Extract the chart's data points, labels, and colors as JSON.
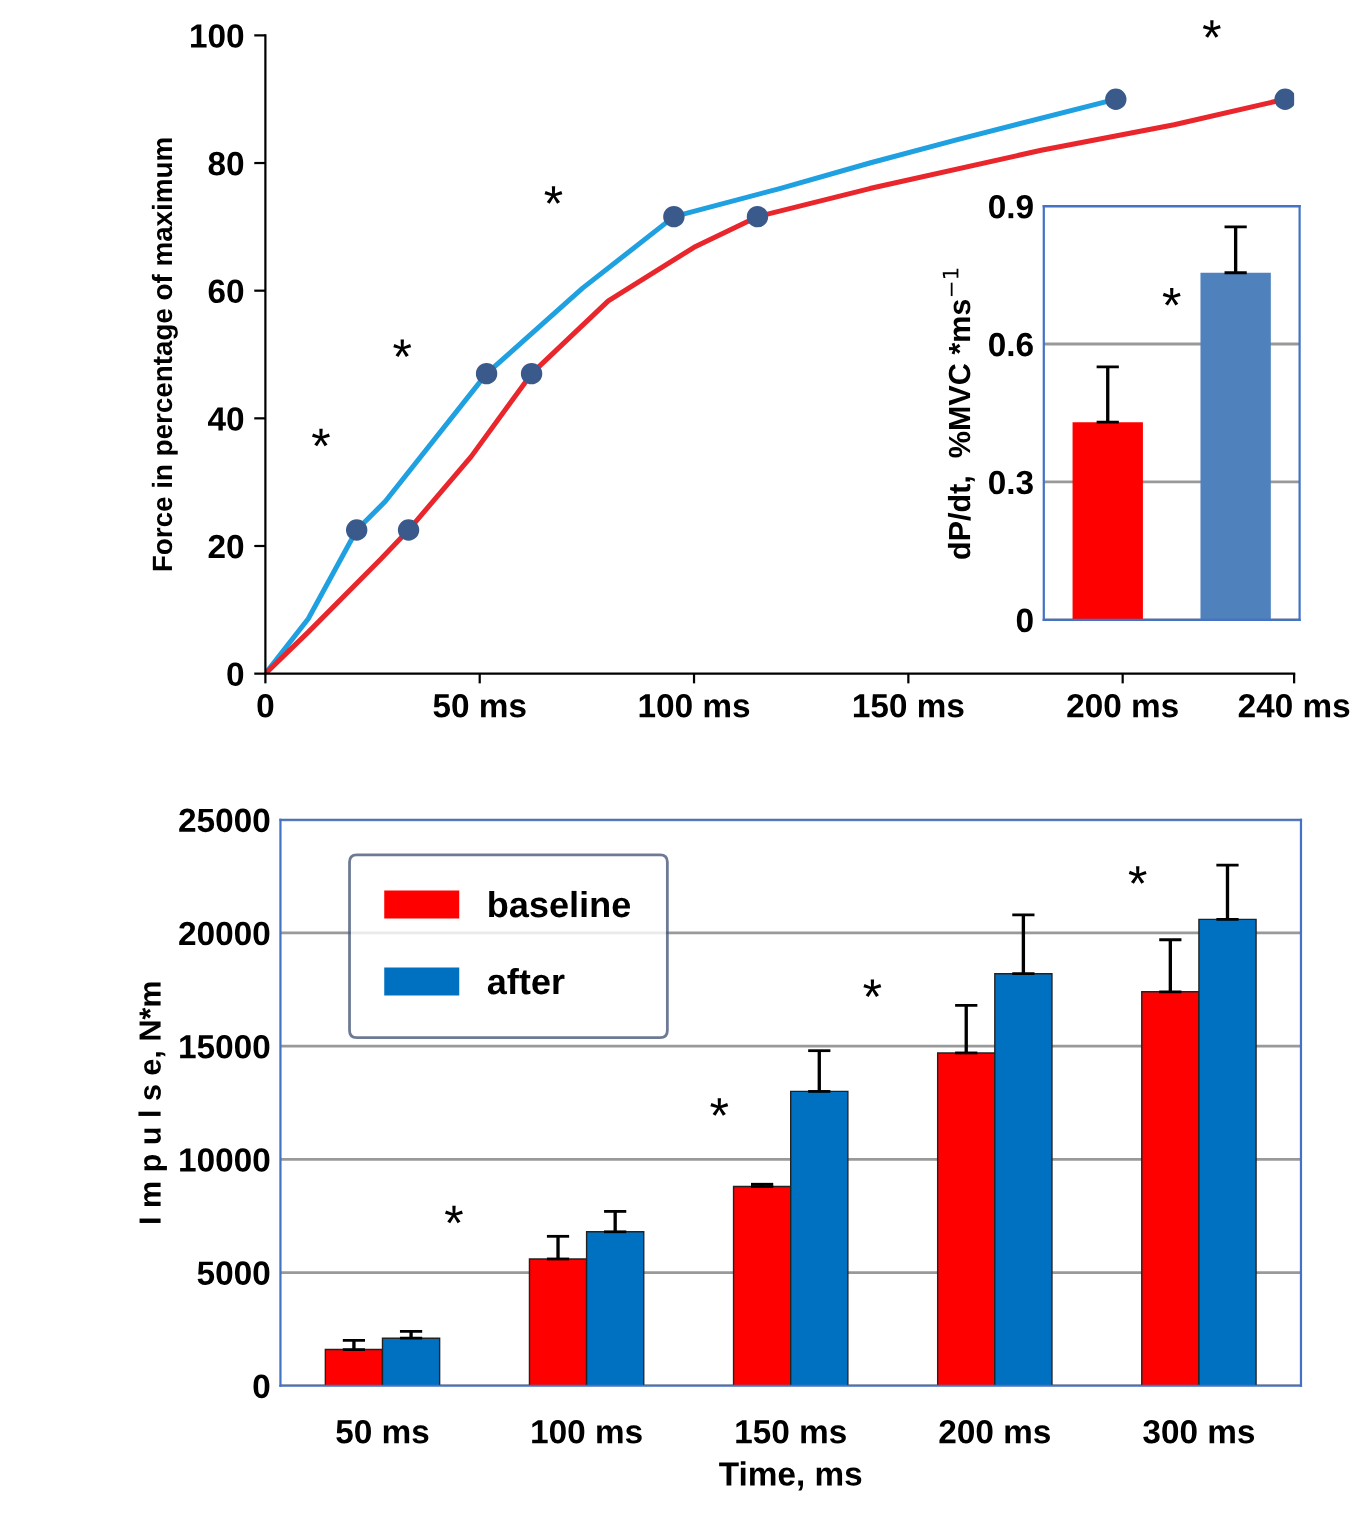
{
  "chart_data": [
    {
      "type": "line",
      "ylabel": "Force in percentage of maximum",
      "xlim": [
        0,
        240
      ],
      "ylim": [
        0,
        100
      ],
      "xticks": [
        0,
        {
          "value": 50,
          "label": "50 ms"
        },
        {
          "value": 100,
          "label": "100 ms"
        },
        {
          "value": 150,
          "label": "150 ms"
        },
        {
          "value": 200,
          "label": "200 ms"
        },
        {
          "value": 240,
          "label": "240 ms"
        }
      ],
      "yticks": [
        0,
        20,
        40,
        60,
        80,
        100
      ],
      "grid": false,
      "legend": false,
      "series": [
        {
          "color": "#1fa0e0",
          "x": [
            0,
            10,
            21.3,
            28,
            51.6,
            74,
            95.3,
            120,
            141,
            161,
            198.4
          ],
          "values": [
            0,
            8.6,
            22.5,
            27,
            47,
            60.4,
            71.6,
            76,
            80,
            83.6,
            90
          ]
        },
        {
          "color": "#e8262b",
          "x": [
            0,
            10,
            27,
            33.4,
            48,
            62.1,
            80,
            100,
            114.8,
            141,
            181,
            212,
            237.9
          ],
          "values": [
            0,
            6.5,
            18,
            22.5,
            34,
            47,
            58.4,
            66.8,
            71.6,
            76,
            82,
            86,
            90
          ]
        },
        {
          "type": "scatter",
          "marker": "circle",
          "color": "#3a5a8c",
          "x": [
            21.3,
            51.6,
            95.3,
            198.4,
            33.4,
            62.1,
            114.8,
            237.9
          ],
          "values": [
            22.5,
            47,
            71.6,
            90,
            22.5,
            47,
            71.6,
            90
          ]
        }
      ],
      "annotations": [
        "*",
        "*",
        "*",
        "*"
      ]
    },
    {
      "type": "bar",
      "ylabel": "dP/dt,  %MVC *ms$^{−1}$",
      "categories": [
        null,
        null
      ],
      "colors": [
        "#ff0000",
        "#4f81bd"
      ],
      "values": [
        0.43,
        0.755
      ],
      "errors": [
        [
          0.43,
          0.55
        ],
        [
          0.755,
          0.855
        ]
      ],
      "ylim": [
        0,
        0.9
      ],
      "yticks": [
        0,
        0.3,
        0.6,
        0.9
      ],
      "grid": "y",
      "legend": false,
      "annotations": [
        "*"
      ]
    },
    {
      "type": "bar",
      "ylabel": "I m p u l s e, N*m",
      "xlabel": "Time, ms",
      "categories": [
        "50 ms",
        "100 ms",
        "150 ms",
        "200 ms",
        "300 ms"
      ],
      "ylim": [
        0,
        25000
      ],
      "yticks": [
        0,
        5000,
        10000,
        15000,
        20000,
        25000
      ],
      "grid": "y",
      "legend": "top left",
      "series": [
        {
          "name": "baseline",
          "color": "#ff0000",
          "values": [
            1600,
            5600,
            8800,
            14700,
            17400
          ],
          "errors": [
            [
              1600,
              2000
            ],
            [
              5600,
              6600
            ],
            [
              8800,
              8900
            ],
            [
              14700,
              16800
            ],
            [
              17400,
              19700
            ]
          ]
        },
        {
          "name": "after",
          "color": "#0070c0",
          "values": [
            2100,
            6800,
            13000,
            18200,
            20600
          ],
          "errors": [
            [
              2100,
              2400
            ],
            [
              6800,
              7700
            ],
            [
              13000,
              14800
            ],
            [
              18200,
              20800
            ],
            [
              20600,
              23000
            ]
          ]
        }
      ],
      "annotations": [
        "*",
        "*",
        "*",
        "*"
      ]
    }
  ]
}
